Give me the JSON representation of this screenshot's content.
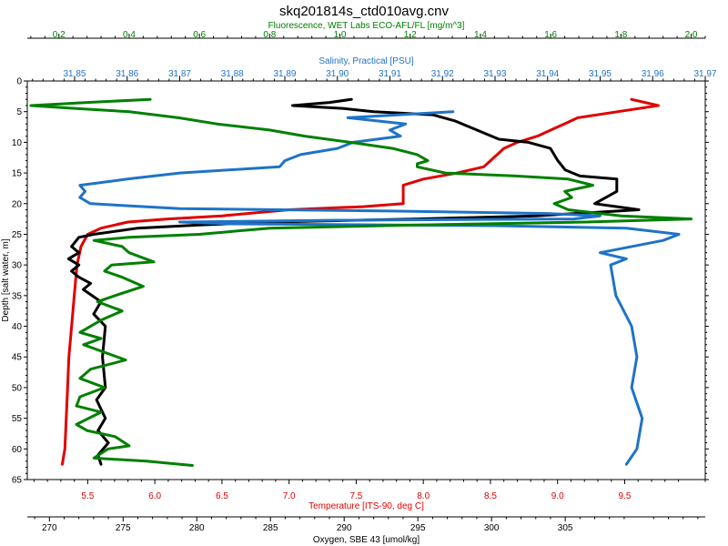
{
  "title": "skq201814s_ctd010avg.cnv",
  "chart_data": {
    "type": "line",
    "title": "skq201814s_ctd010avg.cnv",
    "y_axis": {
      "label": "Depth [salt water, m]",
      "range": [
        0,
        65
      ],
      "inverted": true,
      "ticks": [
        "0",
        "5",
        "10",
        "15",
        "20",
        "25",
        "30",
        "35",
        "40",
        "45",
        "50",
        "55",
        "60",
        "65"
      ]
    },
    "x_axes": [
      {
        "id": "fluorescence",
        "position": "top-outer",
        "label": "Fluorescence, WET Labs ECO-AFL/FL [mg/m^3]",
        "color": "#008000",
        "range": [
          0.11,
          2.04
        ],
        "ticks": [
          "0.2",
          "0.4",
          "0.6",
          "0.8",
          "1.0",
          "1.2",
          "1.4",
          "1.6",
          "1.8",
          "2.0"
        ]
      },
      {
        "id": "salinity",
        "position": "top-inner",
        "label": "Salinity, Practical [PSU]",
        "color": "#1e73c8",
        "range": [
          31.841,
          31.97
        ],
        "ticks": [
          "31.85",
          "31.86",
          "31.87",
          "31.88",
          "31.89",
          "31.90",
          "31.91",
          "31.92",
          "31.93",
          "31.94",
          "31.95",
          "31.96",
          "31.97"
        ]
      },
      {
        "id": "temperature",
        "position": "bottom-inner",
        "label": "Temperature [ITS-90, deg C]",
        "color": "#e00000",
        "range": [
          5.05,
          10.1
        ],
        "ticks": [
          "5.5",
          "6.0",
          "6.5",
          "7.0",
          "7.5",
          "8.0",
          "8.5",
          "9.0",
          "9.5"
        ]
      },
      {
        "id": "oxygen",
        "position": "bottom-outer",
        "label": "Oxygen, SBE 43 [umol/kg]",
        "color": "#000000",
        "range": [
          268.5,
          314.5
        ],
        "ticks": [
          "270",
          "275",
          "280",
          "285",
          "290",
          "295",
          "300",
          "305"
        ]
      }
    ],
    "grid": false,
    "series": [
      {
        "axis": "temperature",
        "color": "#e00000",
        "points": [
          [
            9.55,
            3
          ],
          [
            9.75,
            4
          ],
          [
            9.45,
            5
          ],
          [
            9.15,
            6
          ],
          [
            9.05,
            7
          ],
          [
            8.95,
            8
          ],
          [
            8.85,
            9
          ],
          [
            8.7,
            10
          ],
          [
            8.6,
            11
          ],
          [
            8.55,
            12
          ],
          [
            8.5,
            13
          ],
          [
            8.45,
            14
          ],
          [
            8.25,
            15
          ],
          [
            8.0,
            16
          ],
          [
            7.85,
            17
          ],
          [
            7.85,
            19
          ],
          [
            7.85,
            20
          ],
          [
            7.55,
            20.5
          ],
          [
            7.0,
            21
          ],
          [
            6.5,
            22
          ],
          [
            6.1,
            22.5
          ],
          [
            5.8,
            23
          ],
          [
            5.6,
            24
          ],
          [
            5.5,
            25
          ],
          [
            5.45,
            27
          ],
          [
            5.42,
            30
          ],
          [
            5.4,
            35
          ],
          [
            5.38,
            40
          ],
          [
            5.36,
            45
          ],
          [
            5.35,
            50
          ],
          [
            5.34,
            55
          ],
          [
            5.33,
            60
          ],
          [
            5.31,
            62.5
          ]
        ]
      },
      {
        "axis": "oxygen",
        "color": "#000000",
        "points": [
          [
            290.5,
            3
          ],
          [
            289.0,
            3.5
          ],
          [
            286.5,
            4
          ],
          [
            290.0,
            4.5
          ],
          [
            292.0,
            5
          ],
          [
            296.0,
            5.5
          ],
          [
            297.5,
            6.5
          ],
          [
            299.0,
            8
          ],
          [
            300.5,
            9.5
          ],
          [
            302.5,
            10
          ],
          [
            304.0,
            11
          ],
          [
            304.5,
            13
          ],
          [
            305.0,
            14.5
          ],
          [
            306.0,
            15.5
          ],
          [
            308.5,
            16
          ],
          [
            308.5,
            18
          ],
          [
            307.0,
            20
          ],
          [
            308.5,
            20.5
          ],
          [
            310.0,
            21
          ],
          [
            303.0,
            22
          ],
          [
            295.0,
            22.5
          ],
          [
            285.0,
            23
          ],
          [
            280.0,
            23.5
          ],
          [
            276.0,
            24
          ],
          [
            273.0,
            25
          ],
          [
            272.0,
            25.5
          ],
          [
            271.5,
            27
          ],
          [
            272.0,
            28
          ],
          [
            271.3,
            29
          ],
          [
            272.0,
            30
          ],
          [
            271.5,
            31
          ],
          [
            272.0,
            32
          ],
          [
            272.8,
            33
          ],
          [
            272.3,
            34
          ],
          [
            273.5,
            36
          ],
          [
            273.0,
            38
          ],
          [
            273.8,
            40
          ],
          [
            273.6,
            45
          ],
          [
            273.8,
            50
          ],
          [
            273.2,
            52
          ],
          [
            273.8,
            55
          ],
          [
            273.3,
            57
          ],
          [
            274.0,
            59
          ],
          [
            273.3,
            61
          ],
          [
            273.5,
            62.5
          ]
        ]
      },
      {
        "axis": "salinity",
        "color": "#1e73c8",
        "points": [
          [
            31.922,
            5
          ],
          [
            31.902,
            6
          ],
          [
            31.913,
            7
          ],
          [
            31.91,
            8
          ],
          [
            31.912,
            9
          ],
          [
            31.903,
            10
          ],
          [
            31.9,
            11
          ],
          [
            31.893,
            12
          ],
          [
            31.89,
            13
          ],
          [
            31.889,
            14
          ],
          [
            31.87,
            15
          ],
          [
            31.86,
            16
          ],
          [
            31.851,
            17
          ],
          [
            31.852,
            18
          ],
          [
            31.851,
            19
          ],
          [
            31.853,
            20
          ],
          [
            31.87,
            20.8
          ],
          [
            31.91,
            21.2
          ],
          [
            31.94,
            21.6
          ],
          [
            31.95,
            22
          ],
          [
            31.945,
            22.5
          ],
          [
            31.9,
            22.7
          ],
          [
            31.87,
            23
          ],
          [
            31.88,
            23.3
          ],
          [
            31.93,
            23.6
          ],
          [
            31.955,
            24
          ],
          [
            31.965,
            25
          ],
          [
            31.962,
            26
          ],
          [
            31.95,
            28
          ],
          [
            31.955,
            29
          ],
          [
            31.952,
            30
          ],
          [
            31.953,
            35
          ],
          [
            31.956,
            40
          ],
          [
            31.957,
            45
          ],
          [
            31.956,
            50
          ],
          [
            31.958,
            55
          ],
          [
            31.957,
            60
          ],
          [
            31.955,
            62.5
          ]
        ]
      },
      {
        "axis": "fluorescence",
        "color": "#008000",
        "points": [
          [
            0.46,
            3
          ],
          [
            0.28,
            3.5
          ],
          [
            0.12,
            4
          ],
          [
            0.25,
            4.5
          ],
          [
            0.4,
            5
          ],
          [
            0.54,
            6
          ],
          [
            0.65,
            7
          ],
          [
            0.8,
            8
          ],
          [
            0.9,
            9
          ],
          [
            1.03,
            10
          ],
          [
            1.15,
            11
          ],
          [
            1.22,
            12
          ],
          [
            1.25,
            13
          ],
          [
            1.22,
            13.5
          ],
          [
            1.22,
            14
          ],
          [
            1.3,
            15
          ],
          [
            1.5,
            15.5
          ],
          [
            1.65,
            16
          ],
          [
            1.72,
            17
          ],
          [
            1.64,
            18
          ],
          [
            1.66,
            19
          ],
          [
            1.61,
            20
          ],
          [
            1.65,
            21
          ],
          [
            1.8,
            22
          ],
          [
            2.0,
            22.5
          ],
          [
            1.7,
            23
          ],
          [
            1.2,
            23.5
          ],
          [
            0.8,
            24
          ],
          [
            0.6,
            25
          ],
          [
            0.4,
            25.5
          ],
          [
            0.3,
            26
          ],
          [
            0.38,
            27
          ],
          [
            0.4,
            28
          ],
          [
            0.47,
            29.5
          ],
          [
            0.35,
            30
          ],
          [
            0.33,
            31
          ],
          [
            0.38,
            32
          ],
          [
            0.44,
            33.5
          ],
          [
            0.36,
            35
          ],
          [
            0.31,
            36
          ],
          [
            0.38,
            37.5
          ],
          [
            0.32,
            39
          ],
          [
            0.26,
            41
          ],
          [
            0.32,
            42
          ],
          [
            0.27,
            43
          ],
          [
            0.39,
            45.5
          ],
          [
            0.29,
            47
          ],
          [
            0.26,
            48.5
          ],
          [
            0.33,
            50
          ],
          [
            0.26,
            51.5
          ],
          [
            0.25,
            53
          ],
          [
            0.32,
            54
          ],
          [
            0.25,
            56
          ],
          [
            0.28,
            57
          ],
          [
            0.36,
            58
          ],
          [
            0.4,
            59.5
          ],
          [
            0.34,
            60
          ],
          [
            0.3,
            61.5
          ],
          [
            0.45,
            62
          ],
          [
            0.58,
            62.7
          ]
        ]
      }
    ]
  }
}
